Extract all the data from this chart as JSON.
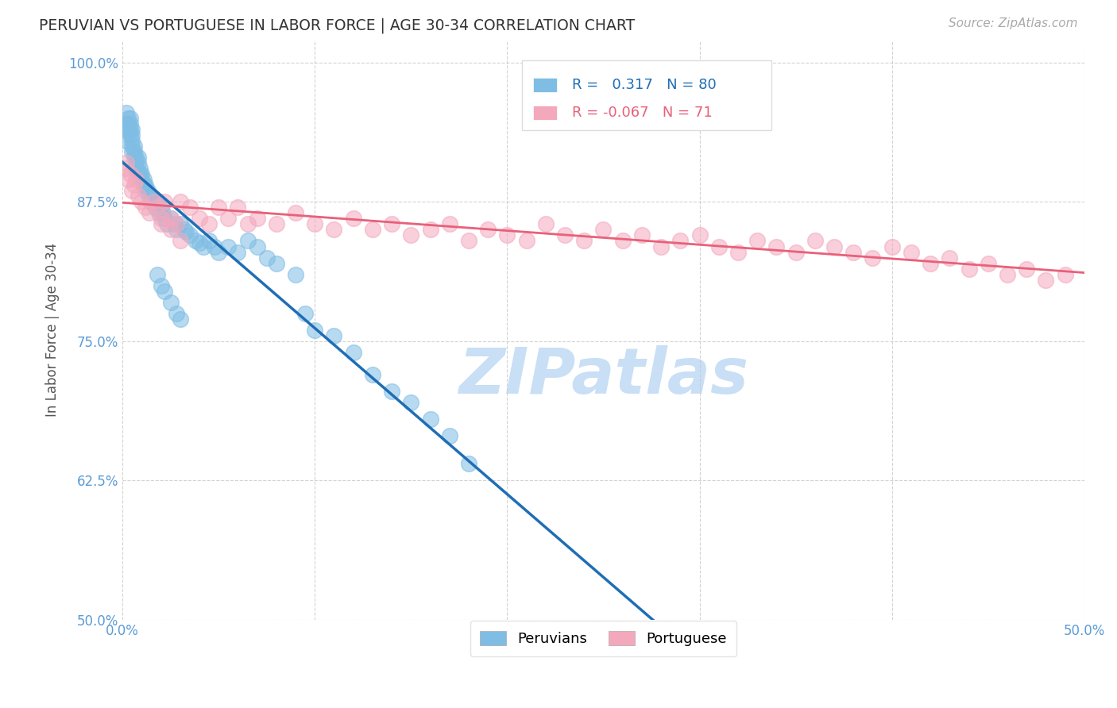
{
  "title": "PERUVIAN VS PORTUGUESE IN LABOR FORCE | AGE 30-34 CORRELATION CHART",
  "source": "Source: ZipAtlas.com",
  "ylabel": "In Labor Force | Age 30-34",
  "xlim": [
    0.0,
    0.5
  ],
  "ylim": [
    0.5,
    1.02
  ],
  "yticks": [
    0.5,
    0.625,
    0.75,
    0.875,
    1.0
  ],
  "yticklabels": [
    "50.0%",
    "62.5%",
    "75.0%",
    "87.5%",
    "100.0%"
  ],
  "xticks": [
    0.0,
    0.1,
    0.2,
    0.3,
    0.4,
    0.5
  ],
  "xticklabels": [
    "0.0%",
    "",
    "",
    "",
    "",
    "50.0%"
  ],
  "r_peruvian": 0.317,
  "n_peruvian": 80,
  "r_portuguese": -0.067,
  "n_portuguese": 71,
  "blue_color": "#7fbde4",
  "pink_color": "#f4a8bc",
  "blue_line_color": "#1f6eb5",
  "pink_line_color": "#e8607a",
  "axis_color": "#5b9bd5",
  "watermark_color": "#c8dff5",
  "grid_color": "#c8c8c8",
  "peruvians_x": [
    0.001,
    0.002,
    0.002,
    0.003,
    0.003,
    0.003,
    0.004,
    0.004,
    0.004,
    0.004,
    0.005,
    0.005,
    0.005,
    0.005,
    0.005,
    0.006,
    0.006,
    0.006,
    0.007,
    0.007,
    0.007,
    0.008,
    0.008,
    0.008,
    0.009,
    0.009,
    0.01,
    0.01,
    0.011,
    0.011,
    0.012,
    0.012,
    0.013,
    0.014,
    0.015,
    0.015,
    0.016,
    0.017,
    0.018,
    0.019,
    0.02,
    0.021,
    0.022,
    0.023,
    0.025,
    0.027,
    0.028,
    0.03,
    0.032,
    0.033,
    0.035,
    0.038,
    0.04,
    0.042,
    0.045,
    0.048,
    0.05,
    0.055,
    0.06,
    0.065,
    0.07,
    0.075,
    0.08,
    0.09,
    0.095,
    0.1,
    0.11,
    0.12,
    0.13,
    0.14,
    0.15,
    0.16,
    0.17,
    0.18,
    0.02,
    0.025,
    0.03,
    0.018,
    0.022,
    0.028
  ],
  "peruvians_y": [
    0.93,
    0.945,
    0.955,
    0.945,
    0.94,
    0.95,
    0.935,
    0.94,
    0.945,
    0.95,
    0.93,
    0.925,
    0.935,
    0.94,
    0.92,
    0.915,
    0.92,
    0.925,
    0.91,
    0.915,
    0.905,
    0.9,
    0.91,
    0.915,
    0.905,
    0.9,
    0.895,
    0.9,
    0.89,
    0.895,
    0.885,
    0.89,
    0.885,
    0.88,
    0.875,
    0.88,
    0.875,
    0.87,
    0.875,
    0.865,
    0.87,
    0.865,
    0.86,
    0.855,
    0.86,
    0.855,
    0.85,
    0.855,
    0.85,
    0.848,
    0.845,
    0.84,
    0.838,
    0.835,
    0.84,
    0.835,
    0.83,
    0.835,
    0.83,
    0.84,
    0.835,
    0.825,
    0.82,
    0.81,
    0.775,
    0.76,
    0.755,
    0.74,
    0.72,
    0.705,
    0.695,
    0.68,
    0.665,
    0.64,
    0.8,
    0.785,
    0.77,
    0.81,
    0.795,
    0.775
  ],
  "portuguese_x": [
    0.001,
    0.002,
    0.003,
    0.004,
    0.005,
    0.006,
    0.007,
    0.008,
    0.01,
    0.012,
    0.014,
    0.016,
    0.018,
    0.02,
    0.022,
    0.025,
    0.028,
    0.03,
    0.035,
    0.04,
    0.045,
    0.05,
    0.055,
    0.06,
    0.065,
    0.07,
    0.08,
    0.09,
    0.1,
    0.11,
    0.12,
    0.13,
    0.14,
    0.15,
    0.16,
    0.17,
    0.18,
    0.19,
    0.2,
    0.21,
    0.22,
    0.23,
    0.24,
    0.25,
    0.26,
    0.27,
    0.28,
    0.29,
    0.3,
    0.31,
    0.32,
    0.33,
    0.34,
    0.35,
    0.36,
    0.37,
    0.38,
    0.39,
    0.4,
    0.41,
    0.42,
    0.43,
    0.44,
    0.45,
    0.46,
    0.47,
    0.48,
    0.49,
    0.03,
    0.025,
    0.02
  ],
  "portuguese_y": [
    0.905,
    0.91,
    0.895,
    0.9,
    0.885,
    0.89,
    0.895,
    0.88,
    0.875,
    0.87,
    0.865,
    0.875,
    0.87,
    0.86,
    0.875,
    0.86,
    0.855,
    0.875,
    0.87,
    0.86,
    0.855,
    0.87,
    0.86,
    0.87,
    0.855,
    0.86,
    0.855,
    0.865,
    0.855,
    0.85,
    0.86,
    0.85,
    0.855,
    0.845,
    0.85,
    0.855,
    0.84,
    0.85,
    0.845,
    0.84,
    0.855,
    0.845,
    0.84,
    0.85,
    0.84,
    0.845,
    0.835,
    0.84,
    0.845,
    0.835,
    0.83,
    0.84,
    0.835,
    0.83,
    0.84,
    0.835,
    0.83,
    0.825,
    0.835,
    0.83,
    0.82,
    0.825,
    0.815,
    0.82,
    0.81,
    0.815,
    0.805,
    0.81,
    0.84,
    0.85,
    0.855
  ]
}
